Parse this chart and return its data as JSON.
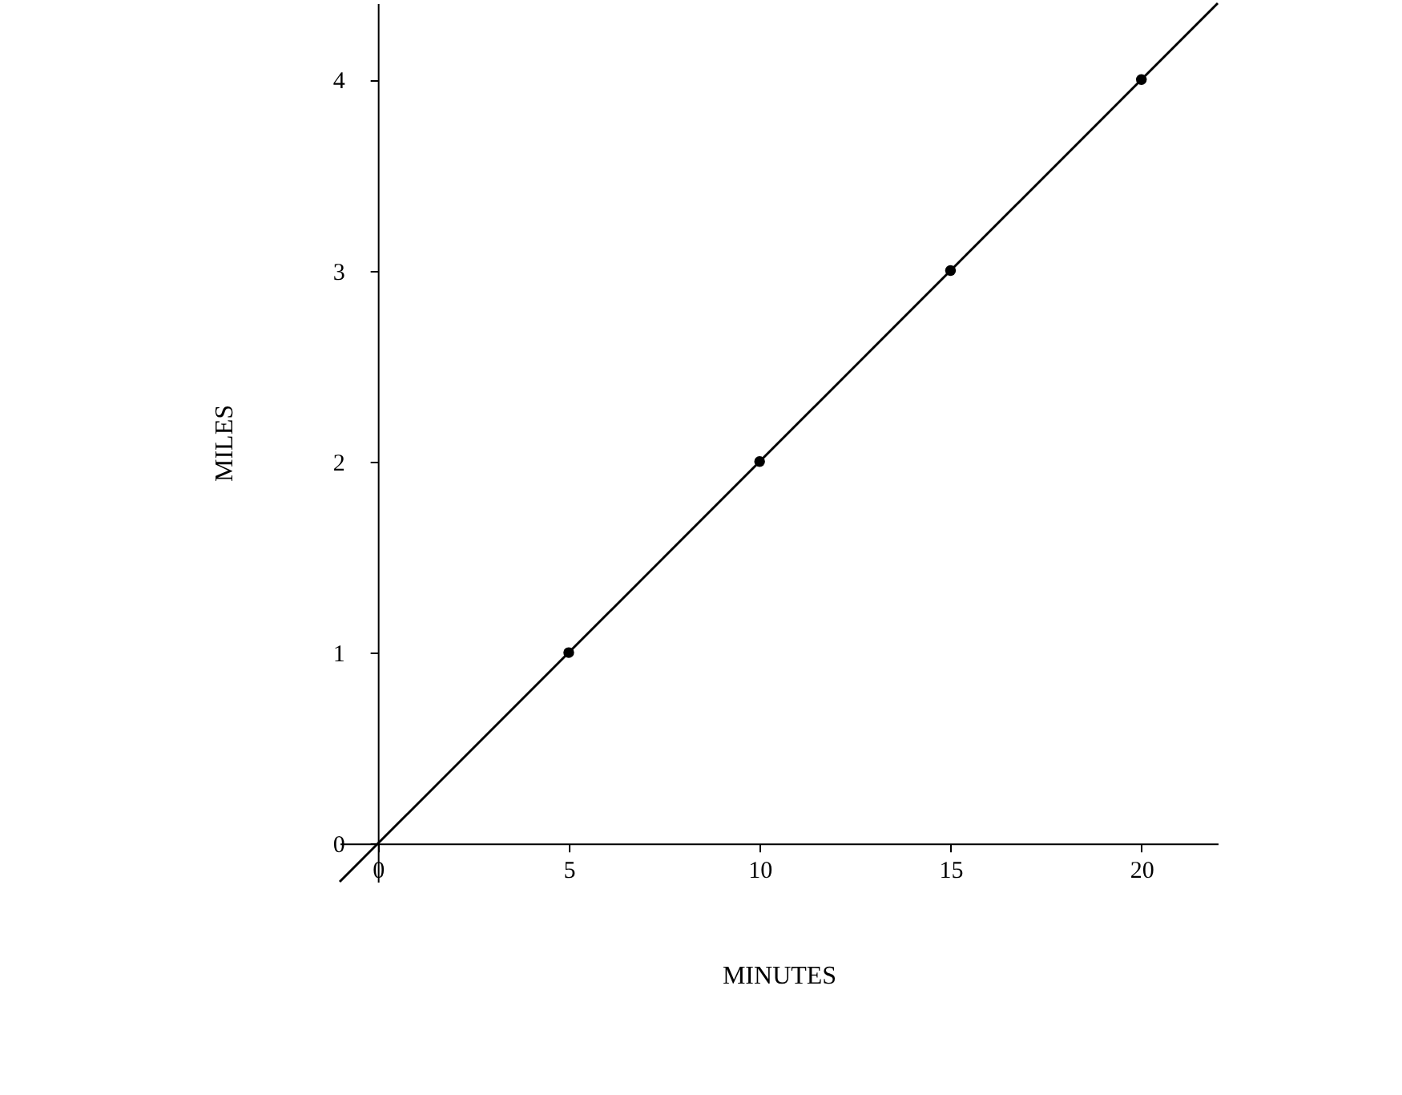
{
  "chart_data": {
    "type": "line",
    "xlabel": "MINUTES",
    "ylabel": "MILES",
    "xlim": [
      -1,
      22
    ],
    "ylim": [
      -0.2,
      4.4
    ],
    "xticks": [
      0,
      5,
      10,
      15,
      20
    ],
    "yticks": [
      0,
      1,
      2,
      3,
      4
    ],
    "grid": false,
    "series": [
      {
        "type": "line",
        "color": "#000000",
        "x": [
          -1,
          22
        ],
        "values": [
          -0.2,
          4.4
        ],
        "marker": "none",
        "line_style": "solid"
      },
      {
        "type": "scatter",
        "color": "#000000",
        "x": [
          5,
          10,
          15,
          20
        ],
        "values": [
          1,
          2,
          3,
          4
        ],
        "marker": "circle"
      }
    ]
  }
}
